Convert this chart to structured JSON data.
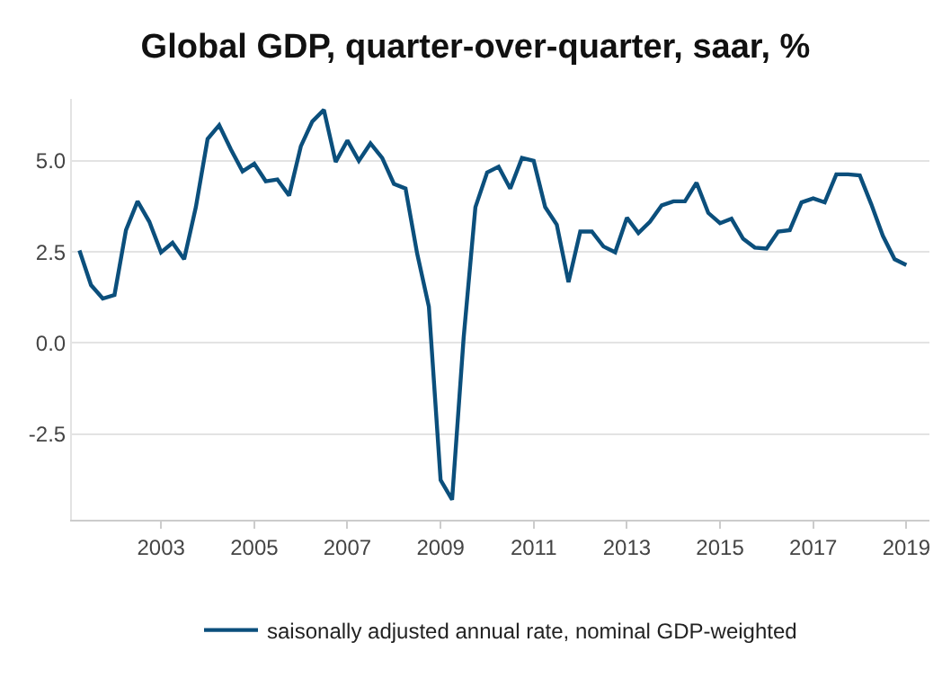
{
  "chart_data": {
    "type": "line",
    "title": "Global GDP, quarter-over-quarter, saar, %",
    "x": [
      "2001-04",
      "2001-07",
      "2001-10",
      "2002-01",
      "2002-04",
      "2002-07",
      "2002-10",
      "2003-01",
      "2003-04",
      "2003-07",
      "2003-10",
      "2004-01",
      "2004-04",
      "2004-07",
      "2004-10",
      "2005-01",
      "2005-04",
      "2005-07",
      "2005-10",
      "2006-01",
      "2006-04",
      "2006-07",
      "2006-10",
      "2007-01",
      "2007-04",
      "2007-07",
      "2007-10",
      "2008-01",
      "2008-04",
      "2008-07",
      "2008-10",
      "2009-01",
      "2009-04",
      "2009-07",
      "2009-10",
      "2010-01",
      "2010-04",
      "2010-07",
      "2010-10",
      "2011-01",
      "2011-04",
      "2011-07",
      "2011-10",
      "2012-01",
      "2012-04",
      "2012-07",
      "2012-10",
      "2013-01",
      "2013-04",
      "2013-07",
      "2013-10",
      "2014-01",
      "2014-04",
      "2014-07",
      "2014-10",
      "2015-01",
      "2015-04",
      "2015-07",
      "2015-10",
      "2016-01",
      "2016-04",
      "2016-07",
      "2016-10",
      "2017-01",
      "2017-04",
      "2017-07",
      "2017-10",
      "2018-01",
      "2018-04",
      "2018-07",
      "2018-10",
      "2019-01"
    ],
    "series": [
      {
        "name": "saisonally adjusted annual rate, nominal GDP-weighted",
        "color": "#0b4f7c",
        "values": [
          2.54,
          1.59,
          1.22,
          1.32,
          3.1,
          3.89,
          3.33,
          2.49,
          2.75,
          2.3,
          3.73,
          5.6,
          5.98,
          5.32,
          4.71,
          4.92,
          4.44,
          4.49,
          4.05,
          5.4,
          6.08,
          6.4,
          4.97,
          5.56,
          5.0,
          5.48,
          5.08,
          4.37,
          4.24,
          2.46,
          1.0,
          -3.76,
          -4.3,
          0.16,
          3.73,
          4.68,
          4.84,
          4.24,
          5.08,
          5.0,
          3.73,
          3.25,
          1.67,
          3.06,
          3.06,
          2.65,
          2.49,
          3.44,
          3.02,
          3.33,
          3.78,
          3.89,
          3.89,
          4.4,
          3.57,
          3.29,
          3.41,
          2.86,
          2.62,
          2.59,
          3.06,
          3.1,
          3.86,
          3.97,
          3.86,
          4.63,
          4.63,
          4.6,
          3.81,
          2.94,
          2.3,
          2.14
        ]
      }
    ],
    "xlim": [
      "2001-02",
      "2019-07"
    ],
    "xticks": [
      {
        "value": "2003-01-01",
        "label": "2003"
      },
      {
        "value": "2005-01-01",
        "label": "2005"
      },
      {
        "value": "2007-01-01",
        "label": "2007"
      },
      {
        "value": "2009-01-01",
        "label": "2009"
      },
      {
        "value": "2011-01-01",
        "label": "2011"
      },
      {
        "value": "2013-01-01",
        "label": "2013"
      },
      {
        "value": "2015-01-01",
        "label": "2015"
      },
      {
        "value": "2017-01-01",
        "label": "2017"
      },
      {
        "value": "2019-01-01",
        "label": "2019"
      }
    ],
    "ylim": [
      -4.85,
      6.7
    ],
    "yticks": [
      {
        "value": -2.5,
        "label": "-2.5"
      },
      {
        "value": 0,
        "label": "0.0"
      },
      {
        "value": 2.5,
        "label": "2.5"
      },
      {
        "value": 5,
        "label": "5.0"
      }
    ],
    "grid": "y",
    "legend": "bottom",
    "marker": "none",
    "line_style": "solid"
  }
}
